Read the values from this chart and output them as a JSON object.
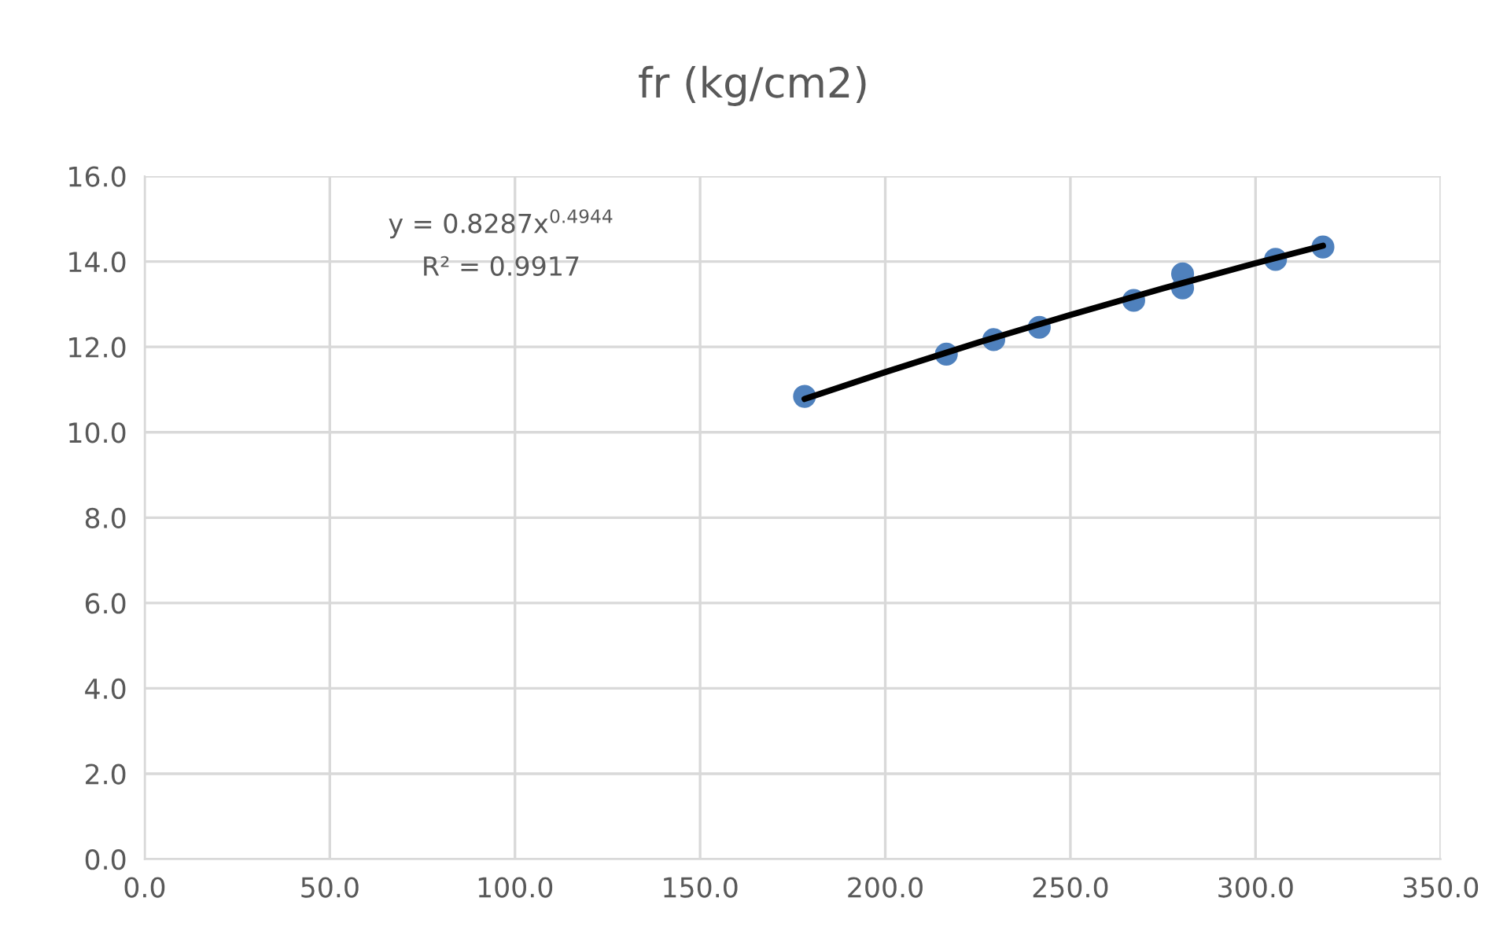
{
  "chart_data": {
    "type": "scatter",
    "title": "fr (kg/cm2)",
    "xlim": [
      0,
      350
    ],
    "ylim": [
      0,
      16
    ],
    "xticks": [
      {
        "value": 0,
        "label": "0.0"
      },
      {
        "value": 50,
        "label": "50.0"
      },
      {
        "value": 100,
        "label": "100.0"
      },
      {
        "value": 150,
        "label": "150.0"
      },
      {
        "value": 200,
        "label": "200.0"
      },
      {
        "value": 250,
        "label": "250.0"
      },
      {
        "value": 300,
        "label": "300.0"
      },
      {
        "value": 350,
        "label": "350.0"
      }
    ],
    "yticks": [
      {
        "value": 0,
        "label": "0.0"
      },
      {
        "value": 2,
        "label": "2.0"
      },
      {
        "value": 4,
        "label": "4.0"
      },
      {
        "value": 6,
        "label": "6.0"
      },
      {
        "value": 8,
        "label": "8.0"
      },
      {
        "value": 10,
        "label": "10.0"
      },
      {
        "value": 12,
        "label": "12.0"
      },
      {
        "value": 14,
        "label": "14.0"
      },
      {
        "value": 16,
        "label": "16.0"
      }
    ],
    "grid": true,
    "legend": false,
    "series": [
      {
        "color": "#4f81bd",
        "marker": "circle",
        "x": [
          178.2,
          216.5,
          229.3,
          241.6,
          267.1,
          280.3,
          280.3,
          305.4,
          318.2
        ],
        "values": [
          10.84,
          11.83,
          12.17,
          12.46,
          13.09,
          13.71,
          13.38,
          14.05,
          14.34
        ]
      },
      {
        "type": "line",
        "color": "#000000",
        "marker": "none",
        "line_style": "solid",
        "x": [
          178.2,
          200,
          225,
          250,
          275,
          300,
          318.2
        ],
        "values": [
          10.78,
          11.41,
          12.1,
          12.75,
          13.37,
          13.96,
          14.37
        ]
      }
    ],
    "annotations": [
      "y = 0.8287x$^{0.4944}$",
      "R² = 0.9917"
    ]
  }
}
